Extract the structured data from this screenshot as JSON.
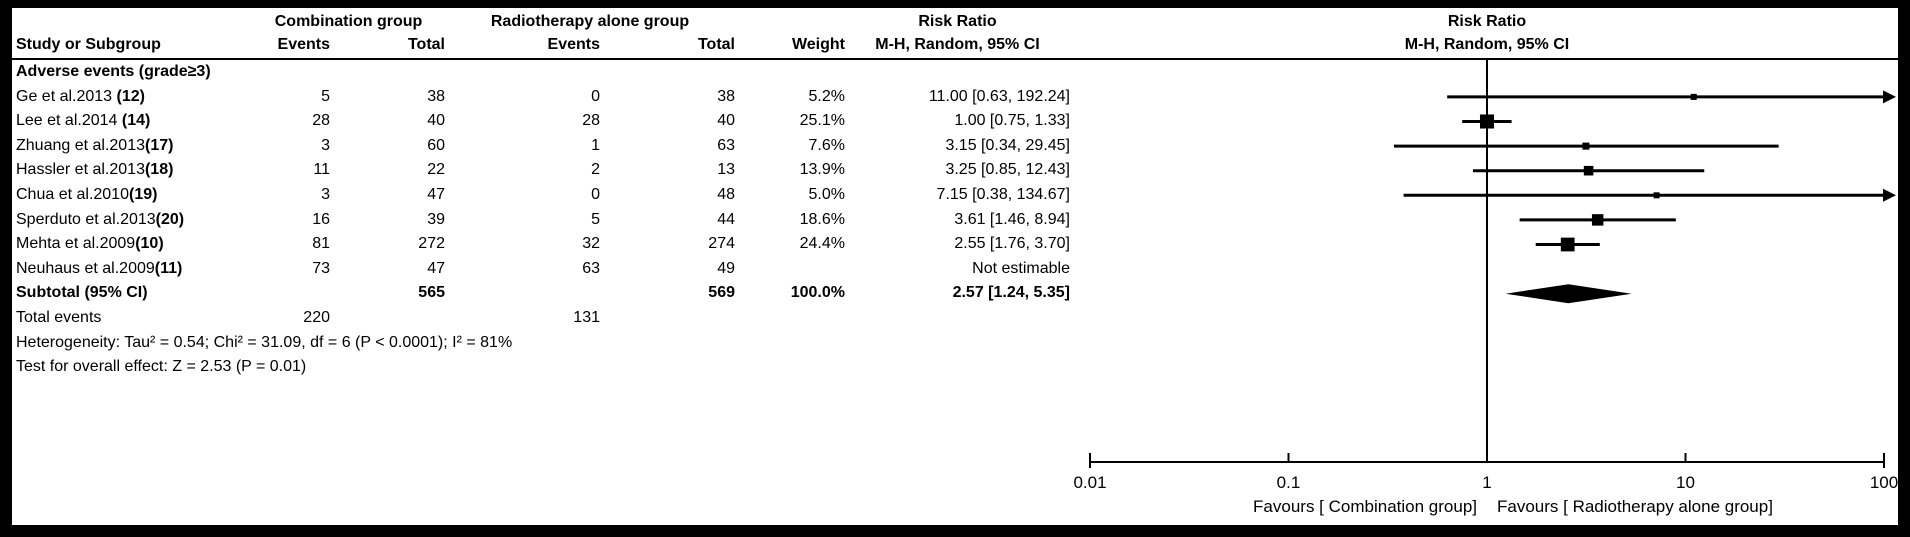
{
  "colors": {
    "frame": "#000000",
    "background": "#ffffff",
    "ink": "#000000"
  },
  "header": {
    "group1": "Combination group",
    "group2": "Radiotherapy alone group",
    "rr_col_title": "Risk Ratio",
    "rr_col_sub": "M-H, Random, 95% CI",
    "plot_title": "Risk Ratio",
    "plot_sub": "M-H, Random, 95% CI",
    "study": "Study or Subgroup",
    "events": "Events",
    "total": "Total",
    "weight": "Weight"
  },
  "section_label": "Adverse events (grade≥3)",
  "footer": {
    "total_events_label": "Total events",
    "total_events_combination": "220",
    "total_events_radiotherapy": "131",
    "heterogeneity": "Heterogeneity: Tau² = 0.54; Chi² = 31.09, df = 6 (P < 0.0001); I² = 81%",
    "overall_effect": "Test for overall effect: Z = 2.53 (P = 0.01)"
  },
  "chart_data": {
    "type": "forest",
    "x_scale": "log",
    "x_ticks": [
      0.01,
      0.1,
      1,
      10,
      100
    ],
    "x_tick_labels": [
      "0.01",
      "0.1",
      "1",
      "10",
      "100"
    ],
    "null_line": 1,
    "favours_left": "Favours [ Combination group]",
    "favours_right": "Favours [ Radiotherapy alone group]",
    "studies": [
      {
        "row": 1,
        "name": "Ge et al.2013 ",
        "ref": "(12)",
        "e1": "5",
        "t1": "38",
        "e2": "0",
        "t2": "38",
        "weight": "5.2%",
        "weight_pct": 5.2,
        "rr_text": "11.00 [0.63, 192.24]",
        "rr": 11.0,
        "low": 0.63,
        "high": 192.24
      },
      {
        "row": 2,
        "name": "Lee et al.2014 ",
        "ref": "(14)",
        "e1": "28",
        "t1": "40",
        "e2": "28",
        "t2": "40",
        "weight": "25.1%",
        "weight_pct": 25.1,
        "rr_text": "1.00 [0.75, 1.33]",
        "rr": 1.0,
        "low": 0.75,
        "high": 1.33
      },
      {
        "row": 3,
        "name": "Zhuang et al.2013",
        "ref": "(17)",
        "e1": "3",
        "t1": "60",
        "e2": "1",
        "t2": "63",
        "weight": "7.6%",
        "weight_pct": 7.6,
        "rr_text": "3.15 [0.34, 29.45]",
        "rr": 3.15,
        "low": 0.34,
        "high": 29.45
      },
      {
        "row": 4,
        "name": "Hassler et al.2013",
        "ref": "(18)",
        "e1": "11",
        "t1": "22",
        "e2": "2",
        "t2": "13",
        "weight": "13.9%",
        "weight_pct": 13.9,
        "rr_text": "3.25 [0.85, 12.43]",
        "rr": 3.25,
        "low": 0.85,
        "high": 12.43
      },
      {
        "row": 5,
        "name": "Chua et al.2010",
        "ref": "(19)",
        "e1": "3",
        "t1": "47",
        "e2": "0",
        "t2": "48",
        "weight": "5.0%",
        "weight_pct": 5.0,
        "rr_text": "7.15 [0.38, 134.67]",
        "rr": 7.15,
        "low": 0.38,
        "high": 134.67
      },
      {
        "row": 6,
        "name": "Sperduto et al.2013",
        "ref": "(20)",
        "e1": "16",
        "t1": "39",
        "e2": "5",
        "t2": "44",
        "weight": "18.6%",
        "weight_pct": 18.6,
        "rr_text": "3.61 [1.46, 8.94]",
        "rr": 3.61,
        "low": 1.46,
        "high": 8.94
      },
      {
        "row": 7,
        "name": "Mehta et al.2009",
        "ref": "(10)",
        "e1": "81",
        "t1": "272",
        "e2": "32",
        "t2": "274",
        "weight": "24.4%",
        "weight_pct": 24.4,
        "rr_text": "2.55 [1.76, 3.70]",
        "rr": 2.55,
        "low": 1.76,
        "high": 3.7
      },
      {
        "row": 8,
        "name": "Neuhaus et al.2009",
        "ref": "(11)",
        "e1": "73",
        "t1": "47",
        "e2": "63",
        "t2": "49",
        "weight": "",
        "weight_pct": 0,
        "rr_text": "Not estimable",
        "rr": null,
        "low": null,
        "high": null
      }
    ],
    "subtotal": {
      "row": 9,
      "label": "Subtotal (95% CI)",
      "t1": "565",
      "t2": "569",
      "weight": "100.0%",
      "rr_text": "2.57 [1.24, 5.35]",
      "rr": 2.57,
      "low": 1.24,
      "high": 5.35
    }
  }
}
